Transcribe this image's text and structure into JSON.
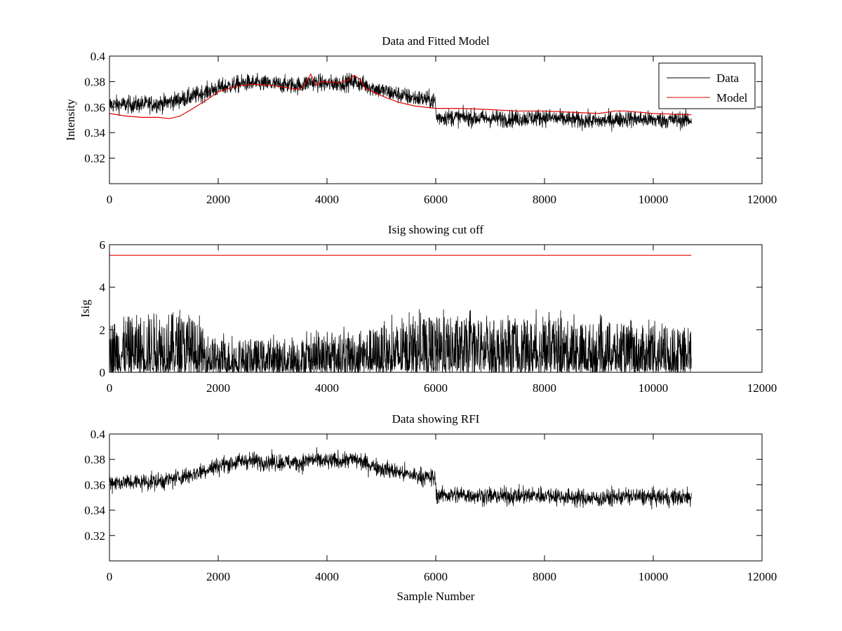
{
  "figure": {
    "background": "#ffffff",
    "colors": {
      "data": "#000000",
      "model": "#e00000",
      "cutoff": "#e00000"
    }
  },
  "chart_data": [
    {
      "type": "line",
      "title": "Data and Fitted Model",
      "xlabel": "",
      "ylabel": "Intensity",
      "xlim": [
        0,
        12000
      ],
      "ylim": [
        0.3,
        0.4
      ],
      "xticks": [
        0,
        2000,
        4000,
        6000,
        8000,
        10000,
        12000
      ],
      "xtick_labels": [
        "0",
        "2000",
        "4000",
        "6000",
        "8000",
        "10000",
        "12000"
      ],
      "yticks": [
        0.32,
        0.34,
        0.36,
        0.38,
        0.4
      ],
      "ytick_labels": [
        "0.32",
        "0.34",
        "0.36",
        "0.38",
        "0.4"
      ],
      "legend": {
        "placement": "top-right",
        "entries": [
          "Data",
          "Model"
        ]
      },
      "series": [
        {
          "name": "Data",
          "color": "#000000",
          "style": "noisy",
          "x": [
            0,
            500,
            1000,
            1500,
            2000,
            2500,
            3000,
            3500,
            3700,
            4000,
            4500,
            5000,
            5500,
            5990,
            6010,
            6500,
            7000,
            7500,
            8000,
            8500,
            9000,
            9500,
            10000,
            10700
          ],
          "y": [
            0.362,
            0.362,
            0.363,
            0.368,
            0.375,
            0.379,
            0.378,
            0.377,
            0.38,
            0.378,
            0.38,
            0.373,
            0.368,
            0.365,
            0.352,
            0.352,
            0.351,
            0.351,
            0.352,
            0.35,
            0.349,
            0.351,
            0.35,
            0.35
          ],
          "noise": 0.012
        },
        {
          "name": "Model",
          "color": "#e00000",
          "style": "line",
          "x": [
            0,
            300,
            600,
            900,
            1100,
            1300,
            1500,
            1800,
            2000,
            2300,
            2600,
            3000,
            3300,
            3500,
            3600,
            3700,
            3800,
            3900,
            4000,
            4200,
            4400,
            4500,
            4600,
            4700,
            5000,
            5300,
            5600,
            6000,
            6500,
            7000,
            7500,
            8000,
            8500,
            9000,
            9300,
            9500,
            10000,
            10700
          ],
          "y": [
            0.355,
            0.353,
            0.352,
            0.352,
            0.351,
            0.353,
            0.358,
            0.366,
            0.372,
            0.376,
            0.378,
            0.377,
            0.375,
            0.374,
            0.378,
            0.386,
            0.377,
            0.38,
            0.38,
            0.379,
            0.381,
            0.385,
            0.382,
            0.375,
            0.369,
            0.364,
            0.361,
            0.359,
            0.359,
            0.358,
            0.357,
            0.357,
            0.356,
            0.355,
            0.357,
            0.357,
            0.355,
            0.354
          ],
          "noise": 0
        }
      ]
    },
    {
      "type": "line",
      "title": "Isig showing cut off",
      "xlabel": "",
      "ylabel": "Isig",
      "xlim": [
        0,
        12000
      ],
      "ylim": [
        0,
        6
      ],
      "xticks": [
        0,
        2000,
        4000,
        6000,
        8000,
        10000,
        12000
      ],
      "xtick_labels": [
        "0",
        "2000",
        "4000",
        "6000",
        "8000",
        "10000",
        "12000"
      ],
      "yticks": [
        0,
        2,
        4,
        6
      ],
      "ytick_labels": [
        "0",
        "2",
        "4",
        "6"
      ],
      "series": [
        {
          "color": "#000000",
          "style": "spiky",
          "x": [
            0,
            1000,
            1500,
            1800,
            2000,
            3000,
            4000,
            5000,
            6000,
            7000,
            8000,
            9000,
            10000,
            10700
          ],
          "y": [
            1.6,
            1.9,
            1.7,
            1.2,
            1.0,
            1.0,
            1.1,
            1.4,
            1.7,
            1.6,
            1.6,
            1.5,
            1.4,
            1.3
          ],
          "noise": 1
        },
        {
          "color": "#e00000",
          "style": "line",
          "x": [
            0,
            10700
          ],
          "y": [
            5.5,
            5.5
          ],
          "noise": 0
        }
      ]
    },
    {
      "type": "line",
      "title": "Data showing RFI",
      "xlabel": "Sample Number",
      "ylabel": "",
      "xlim": [
        0,
        12000
      ],
      "ylim": [
        0.3,
        0.4
      ],
      "xticks": [
        0,
        2000,
        4000,
        6000,
        8000,
        10000,
        12000
      ],
      "xtick_labels": [
        "0",
        "2000",
        "4000",
        "6000",
        "8000",
        "10000",
        "12000"
      ],
      "yticks": [
        0.32,
        0.34,
        0.36,
        0.38,
        0.4
      ],
      "ytick_labels": [
        "0.32",
        "0.34",
        "0.36",
        "0.38",
        "0.4"
      ],
      "series": [
        {
          "color": "#000000",
          "style": "noisy",
          "x": [
            0,
            500,
            1000,
            1500,
            2000,
            2500,
            3000,
            3500,
            3700,
            4000,
            4500,
            5000,
            5500,
            5990,
            6010,
            6500,
            7000,
            7500,
            8000,
            8500,
            9000,
            9500,
            10000,
            10700
          ],
          "y": [
            0.362,
            0.362,
            0.363,
            0.368,
            0.375,
            0.379,
            0.378,
            0.377,
            0.38,
            0.378,
            0.38,
            0.373,
            0.368,
            0.365,
            0.352,
            0.352,
            0.351,
            0.351,
            0.352,
            0.35,
            0.349,
            0.351,
            0.35,
            0.35
          ],
          "noise": 0.012
        }
      ]
    }
  ]
}
